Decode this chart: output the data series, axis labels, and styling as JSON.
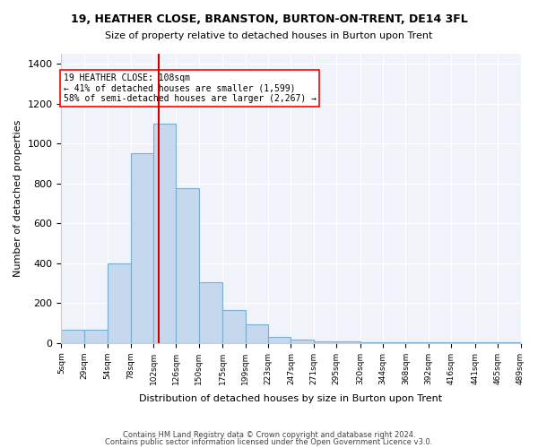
{
  "title1": "19, HEATHER CLOSE, BRANSTON, BURTON-ON-TRENT, DE14 3FL",
  "title2": "Size of property relative to detached houses in Burton upon Trent",
  "xlabel": "Distribution of detached houses by size in Burton upon Trent",
  "ylabel": "Number of detached properties",
  "footer1": "Contains HM Land Registry data © Crown copyright and database right 2024.",
  "footer2": "Contains public sector information licensed under the Open Government Licence v3.0.",
  "annotation_line1": "19 HEATHER CLOSE: 108sqm",
  "annotation_line2": "← 41% of detached houses are smaller (1,599)",
  "annotation_line3": "58% of semi-detached houses are larger (2,267) →",
  "bar_color": "#c5d8ed",
  "bar_edge_color": "#7aaed0",
  "vline_color": "#cc0000",
  "vline_x": 108,
  "property_size": 108,
  "background_color": "#f0f4fa",
  "bins": [
    5,
    29,
    54,
    78,
    102,
    126,
    150,
    175,
    199,
    223,
    247,
    271,
    295,
    320,
    344,
    368,
    392,
    416,
    441,
    465,
    489
  ],
  "bin_labels": [
    "5sqm",
    "29sqm",
    "54sqm",
    "78sqm",
    "102sqm",
    "126sqm",
    "150sqm",
    "175sqm",
    "199sqm",
    "223sqm",
    "247sqm",
    "271sqm",
    "295sqm",
    "320sqm",
    "344sqm",
    "368sqm",
    "392sqm",
    "416sqm",
    "441sqm",
    "465sqm",
    "489sqm"
  ],
  "counts": [
    65,
    65,
    400,
    950,
    1100,
    775,
    305,
    165,
    95,
    30,
    15,
    10,
    10,
    5,
    5,
    2,
    2,
    2,
    2,
    2
  ],
  "ylim": [
    0,
    1450
  ],
  "yticks": [
    0,
    200,
    400,
    600,
    800,
    1000,
    1200,
    1400
  ]
}
